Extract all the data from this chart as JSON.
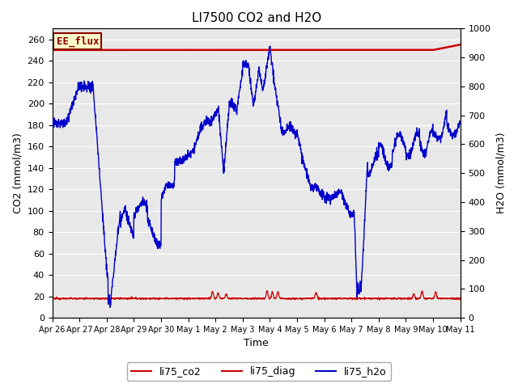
{
  "title": "LI7500 CO2 and H2O",
  "xlabel": "Time",
  "ylabel_left": "CO2 (mmol/m3)",
  "ylabel_right": "H2O (mmol/m3)",
  "annotation": "EE_flux",
  "ylim_left": [
    0,
    270
  ],
  "ylim_right": [
    0,
    1000
  ],
  "yticks_left": [
    0,
    20,
    40,
    60,
    80,
    100,
    120,
    140,
    160,
    180,
    200,
    220,
    240,
    260
  ],
  "yticks_right": [
    0,
    100,
    200,
    300,
    400,
    500,
    600,
    700,
    800,
    900,
    1000
  ],
  "plot_bg_color": "#e8e8e8",
  "fig_bg_color": "#ffffff",
  "grid_color": "#ffffff",
  "co2_color": "#cc0000",
  "diag_color": "#cc0000",
  "h2o_color": "#0000cc",
  "xtick_labels": [
    "Apr 26",
    "Apr 27",
    "Apr 28",
    "Apr 29",
    "Apr 30",
    "May 1",
    "May 2",
    "May 3",
    "May 4",
    "May 5",
    "May 6",
    "May 7",
    "May 8",
    "May 9",
    "May 10",
    "May 11"
  ],
  "xtick_positions": [
    0,
    1,
    2,
    3,
    4,
    5,
    6,
    7,
    8,
    9,
    10,
    11,
    12,
    13,
    14,
    15
  ],
  "legend_labels": [
    "li75_co2",
    "li75_diag",
    "li75_h2o"
  ],
  "legend_colors": [
    "#cc0000",
    "#cc0000",
    "#0000cc"
  ]
}
